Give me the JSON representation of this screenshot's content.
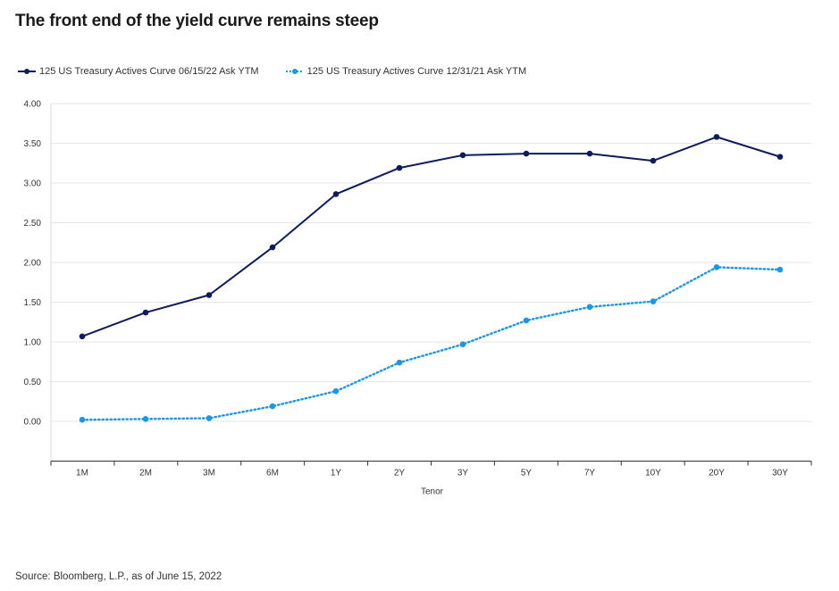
{
  "chart_data": {
    "type": "line",
    "title": "The front end of the yield curve remains steep",
    "xlabel": "Tenor",
    "ylabel": "",
    "categories": [
      "1M",
      "2M",
      "3M",
      "6M",
      "1Y",
      "2Y",
      "3Y",
      "5Y",
      "7Y",
      "10Y",
      "20Y",
      "30Y"
    ],
    "yticks": [
      "0.00",
      "0.50",
      "1.00",
      "1.50",
      "2.00",
      "2.50",
      "3.00",
      "3.50",
      "4.00"
    ],
    "ylim": [
      -0.5,
      4.0
    ],
    "grid": true,
    "legend_position": "top-left",
    "series": [
      {
        "name": "125 US Treasury Actives Curve 06/15/22 Ask YTM",
        "values": [
          1.07,
          1.37,
          1.59,
          2.19,
          2.86,
          3.19,
          3.35,
          3.37,
          3.37,
          3.28,
          3.58,
          3.33
        ],
        "color": "#0f1b5c",
        "style": "solid"
      },
      {
        "name": "125 US Treasury Actives Curve 12/31/21 Ask YTM",
        "values": [
          0.02,
          0.03,
          0.04,
          0.19,
          0.38,
          0.74,
          0.97,
          1.27,
          1.44,
          1.51,
          1.94,
          1.91
        ],
        "color": "#1e96e0",
        "style": "dotted"
      }
    ]
  },
  "footer": {
    "source": "Source: Bloomberg, L.P., as of June 15, 2022"
  }
}
